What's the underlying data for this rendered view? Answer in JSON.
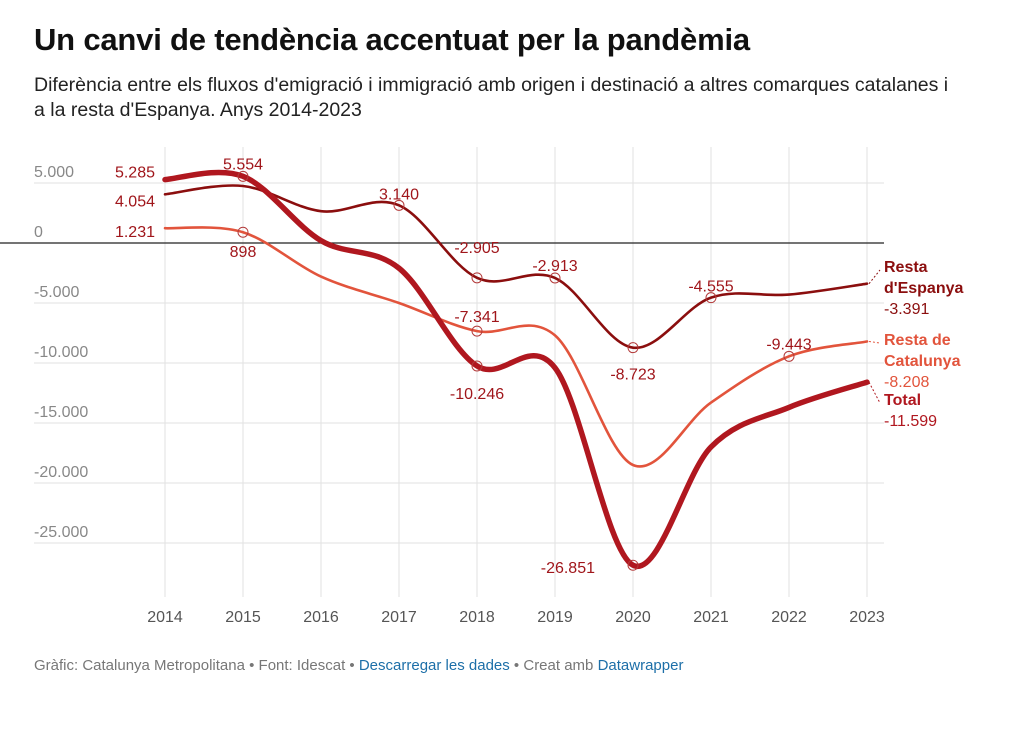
{
  "title": "Un canvi de tendència accentuat per la pandèmia",
  "subtitle": "Diferència entre els fluxos d'emigració i immigració amb origen i destinació a altres comarques catalanes i a la resta d'Espanya. Anys 2014-2023",
  "footer": {
    "credit": "Gràfic: Catalunya Metropolitana",
    "source": "Font: Idescat",
    "download_link": "Descarregar les dades",
    "made_with": "Creat amb",
    "tool_link": "Datawrapper",
    "separator": " • "
  },
  "chart_data": {
    "type": "line",
    "x": [
      2014,
      2015,
      2016,
      2017,
      2018,
      2019,
      2020,
      2021,
      2022,
      2023
    ],
    "x_tick_labels": [
      "2014",
      "2015",
      "2016",
      "2017",
      "2018",
      "2019",
      "2020",
      "2021",
      "2022",
      "2023"
    ],
    "y_ticks": [
      5000,
      0,
      -5000,
      -10000,
      -15000,
      -20000,
      -25000
    ],
    "y_tick_labels": [
      "5.000",
      "0",
      "-5.000",
      "-10.000",
      "-15.000",
      "-20.000",
      "-25.000"
    ],
    "ylim": [
      -29500,
      8000
    ],
    "grid": true,
    "series": [
      {
        "name": "Total",
        "color": "#b0171f",
        "values": [
          5285,
          5554,
          200,
          -2100,
          -10246,
          -10400,
          -26851,
          -17000,
          -13700,
          -11599
        ],
        "end_label_name": "Total",
        "end_label_value": "-11.599"
      },
      {
        "name": "Resta de Catalunya",
        "color": "#e2543c",
        "values": [
          1231,
          898,
          -2800,
          -5000,
          -7341,
          -7700,
          -18500,
          -13300,
          -9443,
          -8208
        ],
        "end_label_name": "Resta de Catalunya",
        "end_label_value": "-8.208"
      },
      {
        "name": "Resta d'Espanya",
        "color": "#8b0e0e",
        "values": [
          4054,
          4750,
          2650,
          3140,
          -2905,
          -2913,
          -8723,
          -4555,
          -4300,
          -3391
        ],
        "end_label_name": "Resta d'Espanya",
        "end_label_value": "-3.391"
      }
    ],
    "annotations": [
      {
        "text": "5.285",
        "x": 2014,
        "series": "Total"
      },
      {
        "text": "5.554",
        "x": 2015,
        "series": "Total"
      },
      {
        "text": "4.054",
        "x": 2014,
        "series": "Resta d'Espanya"
      },
      {
        "text": "1.231",
        "x": 2014,
        "series": "Resta de Catalunya"
      },
      {
        "text": "898",
        "x": 2015,
        "series": "Resta de Catalunya"
      },
      {
        "text": "3.140",
        "x": 2017,
        "series": "Resta d'Espanya"
      },
      {
        "text": "-2.905",
        "x": 2018,
        "series": "Resta d'Espanya"
      },
      {
        "text": "-7.341",
        "x": 2018,
        "series": "Resta de Catalunya"
      },
      {
        "text": "-10.246",
        "x": 2018,
        "series": "Total"
      },
      {
        "text": "-2.913",
        "x": 2019,
        "series": "Resta d'Espanya"
      },
      {
        "text": "-8.723",
        "x": 2020,
        "series": "Resta d'Espanya"
      },
      {
        "text": "-26.851",
        "x": 2020,
        "series": "Total"
      },
      {
        "text": "-4.555",
        "x": 2021,
        "series": "Resta d'Espanya"
      },
      {
        "text": "-9.443",
        "x": 2022,
        "series": "Resta de Catalunya"
      }
    ]
  }
}
